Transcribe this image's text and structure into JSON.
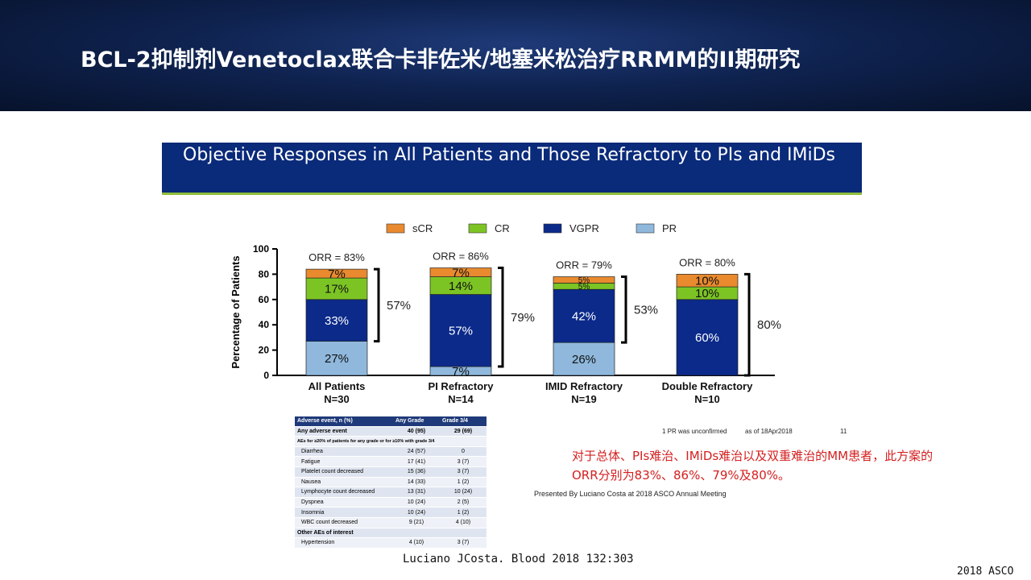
{
  "slide": {
    "title": "BCL-2抑制剂Venetoclax联合卡非佐米/地塞米松治疗RRMM的II期研究",
    "footer": "2018 ASCO"
  },
  "figure": {
    "heading": "Objective Responses in All Patients and Those Refractory to PIs and IMiDs",
    "footnote": "1 PR was unconfirmed",
    "as_of": "as of 18Apr2018",
    "page_number": "11",
    "presented_by": "Presented By Luciano Costa at 2018 ASCO Annual Meeting"
  },
  "summary_text": "对于总体、PIs难治、IMiDs难治以及双重难治的MM患者，此方案的ORR分别为83%、86%、79%及80%。",
  "citation": "Luciano JCosta. Blood 2018 132:303",
  "colors": {
    "sCR": "#e98a2e",
    "CR": "#7cc424",
    "VGPR": "#0b2a8a",
    "PR": "#8fb8dc",
    "banner": "#0f2350",
    "summary": "#d42020"
  },
  "chart_data": {
    "type": "bar",
    "stacked": true,
    "ylabel": "Percentage of Patients",
    "ylim": [
      0,
      100
    ],
    "yticks": [
      0,
      20,
      40,
      60,
      80,
      100
    ],
    "categories": [
      "All Patients",
      "PI Refractory",
      "IMID Refractory",
      "Double Refractory"
    ],
    "category_n": [
      "N=30",
      "N=14",
      "N=19",
      "N=10"
    ],
    "legend": [
      "sCR",
      "CR",
      "VGPR",
      "PR"
    ],
    "legend_position": "top",
    "series": [
      {
        "name": "PR",
        "values": [
          27,
          7,
          26,
          0
        ],
        "labels": [
          "27%",
          "7%",
          "26%",
          ""
        ]
      },
      {
        "name": "VGPR",
        "values": [
          33,
          57,
          42,
          60
        ],
        "labels": [
          "33%",
          "57%",
          "42%",
          "60%"
        ]
      },
      {
        "name": "CR",
        "values": [
          17,
          14,
          5,
          10
        ],
        "labels": [
          "17%",
          "14%",
          "5%",
          "10%"
        ]
      },
      {
        "name": "sCR",
        "values": [
          7,
          7,
          5,
          10
        ],
        "labels": [
          "7%",
          "7%",
          "5%",
          "10%"
        ]
      }
    ],
    "orr_labels": [
      "ORR = 83%",
      "ORR = 86%",
      "ORR = 79%",
      "ORR = 80%"
    ],
    "bracket_labels": [
      "57%",
      "79%",
      "53%",
      "80%"
    ]
  },
  "ae_table": {
    "headers": [
      "Adverse event, n (%)",
      "Any Grade",
      "Grade 3/4"
    ],
    "rows": [
      {
        "label": "Any adverse event",
        "any": "40 (95)",
        "g34": "29 (69)",
        "bold": true
      },
      {
        "label": "AEs for ≥20% of patients for any grade or for ≥10% with grade 3/4",
        "any": "",
        "g34": "",
        "bold": true,
        "span": true
      },
      {
        "label": "Diarrhea",
        "any": "24 (57)",
        "g34": "0",
        "indent": true
      },
      {
        "label": "Fatigue",
        "any": "17 (41)",
        "g34": "3 (7)",
        "indent": true
      },
      {
        "label": "Platelet count decreased",
        "any": "15 (36)",
        "g34": "3 (7)",
        "indent": true
      },
      {
        "label": "Nausea",
        "any": "14 (33)",
        "g34": "1 (2)",
        "indent": true
      },
      {
        "label": "Lymphocyte count decreased",
        "any": "13 (31)",
        "g34": "10 (24)",
        "indent": true
      },
      {
        "label": "Dyspnea",
        "any": "10 (24)",
        "g34": "2 (5)",
        "indent": true
      },
      {
        "label": "Insomnia",
        "any": "10 (24)",
        "g34": "1 (2)",
        "indent": true
      },
      {
        "label": "WBC count decreased",
        "any": "9 (21)",
        "g34": "4 (10)",
        "indent": true
      },
      {
        "label": "Other AEs of interest",
        "any": "",
        "g34": "",
        "bold": true
      },
      {
        "label": "Hypertension",
        "any": "4 (10)",
        "g34": "3 (7)",
        "indent": true
      }
    ]
  }
}
